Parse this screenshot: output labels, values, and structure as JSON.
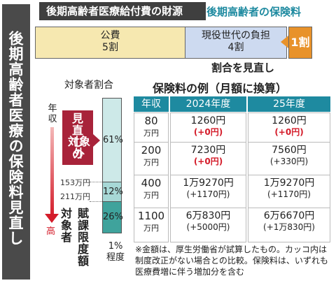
{
  "side_title": "後期高齢者医療の保険料見直し",
  "finance": {
    "title": "後期高齢者医療給付費の財源",
    "premium_label": "後期高齢者の保険料",
    "public_label": "公費",
    "public_share": "5割",
    "current_label": "現役世代の負担",
    "current_share": "4割",
    "premium_share": "1割",
    "review_note": "割合を見直し"
  },
  "share": {
    "header": "対象者割合",
    "axis_label": "年収",
    "axis_high": "高",
    "excluded_line1": "見直しの",
    "excluded_line2": "対象外",
    "threshold1": "153万円",
    "threshold2": "211万円",
    "target_a": "賦課限度額",
    "target_b": "対象者",
    "pct_61": "61%",
    "pct_12": "12%",
    "pct_26": "26%",
    "pct_1": "1%",
    "pct_1_suffix": "程度"
  },
  "table": {
    "title": "保険料の例（月額に換算）",
    "headers": [
      "年収",
      "2024年度",
      "25年度"
    ],
    "rows": [
      {
        "income": "80",
        "unit": "万円",
        "y24": "1260円",
        "d24": "(+0円)",
        "y25": "1260円",
        "d25": "(+0円)"
      },
      {
        "income": "200",
        "unit": "万円",
        "y24": "7230円",
        "d24": "(+0円)",
        "y25": "7560円",
        "d25": "(+330円)"
      },
      {
        "income": "400",
        "unit": "万円",
        "y24": "1万9270円",
        "d24": "(+1170円)",
        "y25": "1万9270円",
        "d25": "(+1170円)"
      },
      {
        "income": "1100",
        "unit": "万円",
        "y24": "6万830円",
        "d24": "(+5000円)",
        "y25": "6万6670円",
        "d25": "(+1万830円)"
      }
    ]
  },
  "note": "※金額は、厚生労働省が試算したもの。カッコ内は制度改正がない場合との比較。保険料は、いずれも医療費増に伴う増加分を含む"
}
